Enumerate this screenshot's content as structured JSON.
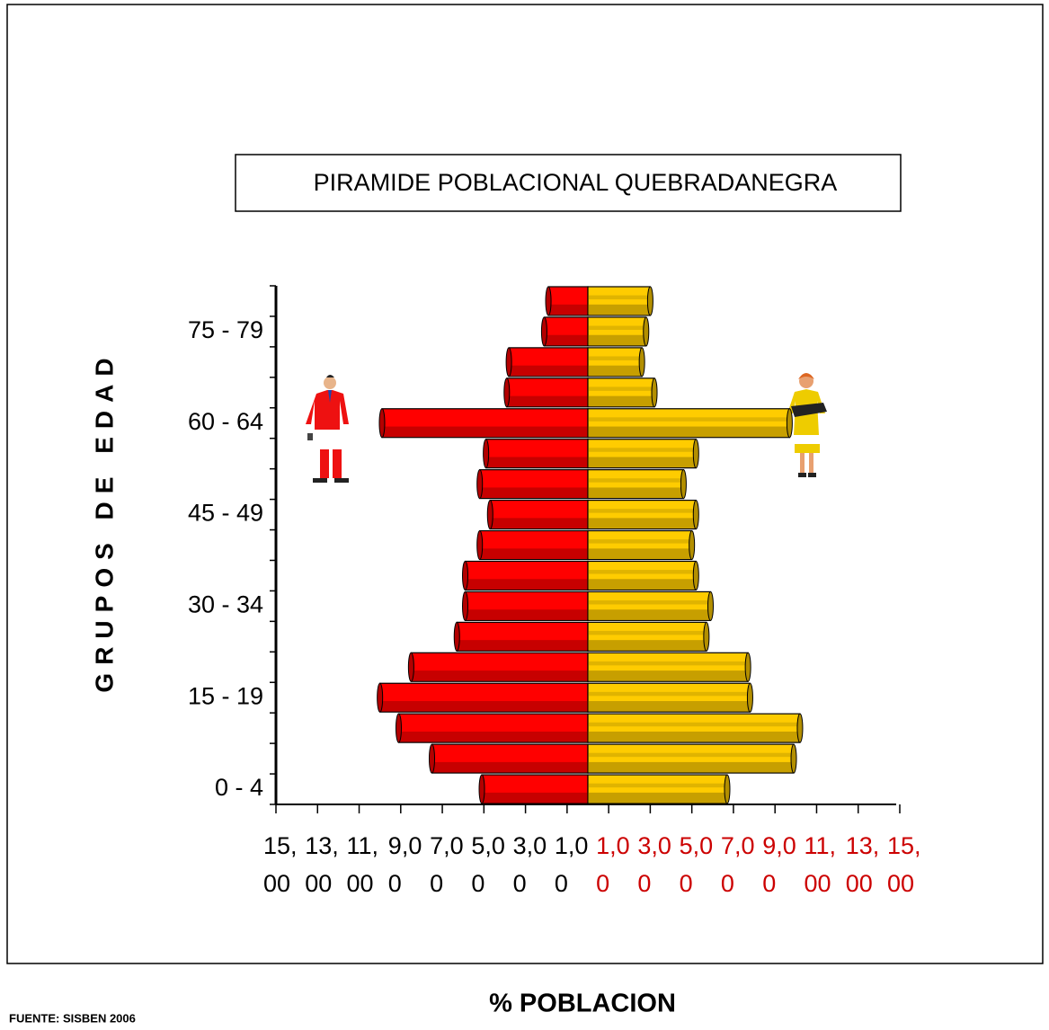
{
  "chart_data": {
    "type": "pyramid",
    "title": "PIRAMIDE POBLACIONAL QUEBRADANEGRA",
    "y_label": "GRUPOS DE EDAD",
    "x_label": "% POBLACION",
    "source": "FUENTE: SISBEN 2006",
    "categories": [
      "0 - 4",
      null,
      null,
      "15 - 19",
      null,
      null,
      "30 - 34",
      null,
      null,
      "45 - 49",
      null,
      null,
      "60 - 64",
      null,
      null,
      "75 - 79",
      null
    ],
    "series": [
      {
        "color": "#ff0000",
        "values": [
          -5.1,
          -7.5,
          -9.1,
          -10.0,
          -8.5,
          -6.3,
          -5.9,
          -5.9,
          -5.2,
          -4.7,
          -5.2,
          -4.9,
          -9.9,
          -3.9,
          -3.8,
          -2.1,
          -1.9
        ]
      },
      {
        "color": "#ffcc00",
        "values": [
          6.7,
          9.9,
          10.2,
          7.8,
          7.7,
          5.7,
          5.9,
          5.2,
          5.0,
          5.2,
          4.6,
          5.2,
          9.7,
          3.2,
          2.6,
          2.8,
          3.0
        ]
      }
    ],
    "xlim": [
      -15,
      15
    ],
    "xticks": [
      {
        "value": -15,
        "label": "15,00"
      },
      {
        "value": -13,
        "label": "13,00"
      },
      {
        "value": -11,
        "label": "11,00"
      },
      {
        "value": -9,
        "label": "9,00"
      },
      {
        "value": -7,
        "label": "7,00"
      },
      {
        "value": -5,
        "label": "5,00"
      },
      {
        "value": -3,
        "label": "3,00"
      },
      {
        "value": -1,
        "label": "1,00"
      },
      {
        "value": 1,
        "label": "1,00"
      },
      {
        "value": 3,
        "label": "3,00"
      },
      {
        "value": 5,
        "label": "5,00"
      },
      {
        "value": 7,
        "label": "7,00"
      },
      {
        "value": 9,
        "label": "9,00"
      },
      {
        "value": 11,
        "label": "11,00"
      },
      {
        "value": 13,
        "label": "13,00"
      },
      {
        "value": 15,
        "label": "15,00"
      }
    ]
  }
}
